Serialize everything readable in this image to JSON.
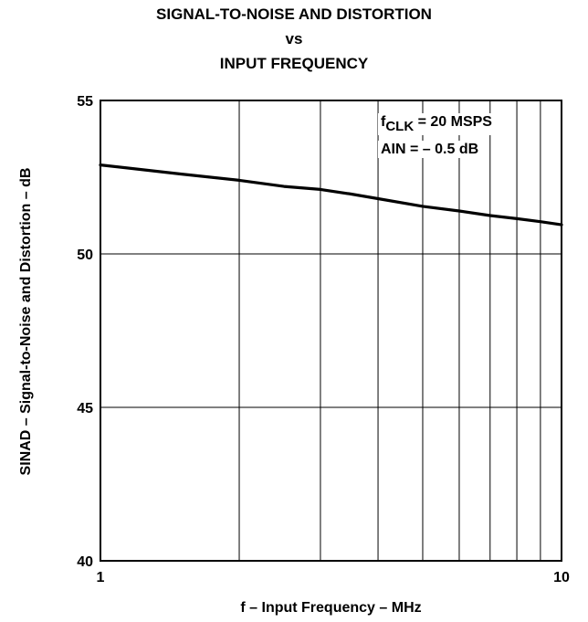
{
  "chart_data": {
    "type": "line",
    "title": [
      "SIGNAL-TO-NOISE AND DISTORTION",
      "vs",
      "INPUT FREQUENCY"
    ],
    "xlabel": "f – Input Frequency – MHz",
    "ylabel": "SINAD – Signal-to-Noise and Distortion – dB",
    "x_scale": "log",
    "xlim": [
      1,
      10
    ],
    "ylim": [
      40,
      55
    ],
    "x_ticks": [
      1,
      10
    ],
    "x_tick_labels": [
      "1",
      "10"
    ],
    "y_ticks": [
      40,
      45,
      50,
      55
    ],
    "y_tick_labels": [
      "40",
      "45",
      "50",
      "55"
    ],
    "grid": true,
    "annotation": {
      "line1_main": "f",
      "line1_sub": "CLK",
      "line1_rest": " = 20 MSPS",
      "line2": "AIN = – 0.5 dB"
    },
    "series": [
      {
        "x": [
          1.0,
          1.5,
          2.0,
          2.5,
          3.0,
          3.5,
          4.0,
          5.0,
          6.0,
          7.0,
          8.0,
          9.0,
          10.0
        ],
        "y": [
          52.9,
          52.6,
          52.4,
          52.2,
          52.1,
          51.95,
          51.8,
          51.55,
          51.4,
          51.25,
          51.15,
          51.05,
          50.95
        ]
      }
    ]
  }
}
